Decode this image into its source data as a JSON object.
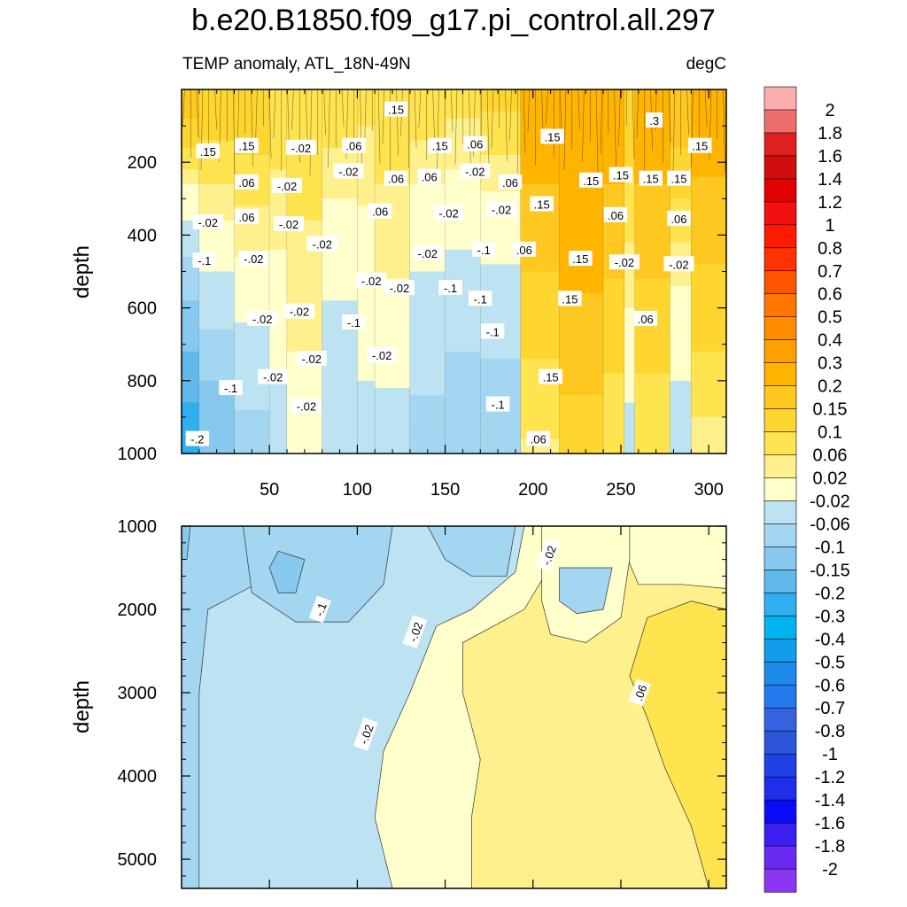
{
  "title": "b.e20.B1850.f09_g17.pi_control.all.297",
  "subtitle_left": "TEMP anomaly, ATL_18N-49N",
  "subtitle_right": "degC",
  "chart_data": [
    {
      "type": "heatmap",
      "panel": "upper",
      "description_role": "filled contour of temperature anomaly vs time and depth",
      "xlabel": "",
      "ylabel": "depth",
      "xlim": [
        0,
        310
      ],
      "ylim": [
        1000,
        0
      ],
      "xticks": [
        50,
        100,
        150,
        200,
        250,
        300
      ],
      "yticks": [
        200,
        400,
        600,
        800,
        1000
      ],
      "columns": [
        {
          "x0": 0,
          "x1": 10,
          "surface": 0.2,
          "deep": -0.25,
          "cross": 300
        },
        {
          "x0": 10,
          "x1": 30,
          "surface": 0.15,
          "deep": -0.15,
          "cross": 420
        },
        {
          "x0": 30,
          "x1": 50,
          "surface": 0.15,
          "deep": -0.08,
          "cross": 520
        },
        {
          "x0": 50,
          "x1": 60,
          "surface": 0.1,
          "deep": -0.04,
          "cross": 560
        },
        {
          "x0": 60,
          "x1": 80,
          "surface": 0.1,
          "deep": 0.0,
          "cross": 900
        },
        {
          "x0": 80,
          "x1": 100,
          "surface": 0.1,
          "deep": -0.06,
          "cross": 380
        },
        {
          "x0": 100,
          "x1": 110,
          "surface": 0.08,
          "deep": -0.03,
          "cross": 420
        },
        {
          "x0": 110,
          "x1": 130,
          "surface": 0.1,
          "deep": -0.04,
          "cross": 650
        },
        {
          "x0": 130,
          "x1": 150,
          "surface": 0.1,
          "deep": -0.08,
          "cross": 330
        },
        {
          "x0": 150,
          "x1": 170,
          "surface": 0.08,
          "deep": -0.1,
          "cross": 300
        },
        {
          "x0": 170,
          "x1": 193,
          "surface": 0.12,
          "deep": -0.1,
          "cross": 340
        },
        {
          "x0": 193,
          "x1": 215,
          "surface": 0.25,
          "deep": 0.05,
          "cross": 1000
        },
        {
          "x0": 215,
          "x1": 240,
          "surface": 0.3,
          "deep": 0.12,
          "cross": 1000
        },
        {
          "x0": 240,
          "x1": 252,
          "surface": 0.25,
          "deep": 0.06,
          "cross": 1000
        },
        {
          "x0": 252,
          "x1": 258,
          "surface": 0.15,
          "deep": -0.04,
          "cross": 700
        },
        {
          "x0": 258,
          "x1": 278,
          "surface": 0.25,
          "deep": 0.06,
          "cross": 1000
        },
        {
          "x0": 278,
          "x1": 290,
          "surface": 0.2,
          "deep": -0.04,
          "cross": 600
        },
        {
          "x0": 290,
          "x1": 310,
          "surface": 0.25,
          "deep": 0.04,
          "cross": 1000
        }
      ],
      "contour_labels": [
        {
          "text": ".15",
          "x": 122,
          "y": 55
        },
        {
          "text": ".15",
          "x": 15,
          "y": 170
        },
        {
          "text": ".15",
          "x": 37,
          "y": 155
        },
        {
          "text": "-.02",
          "x": 68,
          "y": 160
        },
        {
          "text": ".06",
          "x": 98,
          "y": 155
        },
        {
          "text": ".15",
          "x": 147,
          "y": 155
        },
        {
          "text": ".06",
          "x": 167,
          "y": 150
        },
        {
          "text": ".15",
          "x": 211,
          "y": 130
        },
        {
          "text": ".3",
          "x": 269,
          "y": 85
        },
        {
          "text": ".15",
          "x": 295,
          "y": 155
        },
        {
          "text": ".06",
          "x": 37,
          "y": 255
        },
        {
          "text": "-.02",
          "x": 60,
          "y": 265
        },
        {
          "text": "-.02",
          "x": 95,
          "y": 225
        },
        {
          "text": ".06",
          "x": 122,
          "y": 245
        },
        {
          "text": ".06",
          "x": 141,
          "y": 240
        },
        {
          "text": "-.02",
          "x": 167,
          "y": 225
        },
        {
          "text": ".06",
          "x": 187,
          "y": 255
        },
        {
          "text": ".15",
          "x": 233,
          "y": 250
        },
        {
          "text": ".15",
          "x": 250,
          "y": 235
        },
        {
          "text": ".15",
          "x": 267,
          "y": 245
        },
        {
          "text": ".15",
          "x": 283,
          "y": 245
        },
        {
          "text": "-.02",
          "x": 15,
          "y": 365
        },
        {
          "text": ".06",
          "x": 37,
          "y": 350
        },
        {
          "text": "-.02",
          "x": 61,
          "y": 370
        },
        {
          "text": ".06",
          "x": 113,
          "y": 335
        },
        {
          "text": "-.02",
          "x": 152,
          "y": 340
        },
        {
          "text": "-.02",
          "x": 182,
          "y": 330
        },
        {
          "text": ".15",
          "x": 205,
          "y": 315
        },
        {
          "text": ".06",
          "x": 247,
          "y": 345
        },
        {
          "text": ".06",
          "x": 283,
          "y": 355
        },
        {
          "text": "-.1",
          "x": 13,
          "y": 470
        },
        {
          "text": "-.02",
          "x": 41,
          "y": 465
        },
        {
          "text": "-.02",
          "x": 80,
          "y": 425
        },
        {
          "text": "-.02",
          "x": 140,
          "y": 450
        },
        {
          "text": "-.1",
          "x": 172,
          "y": 440
        },
        {
          "text": ".06",
          "x": 195,
          "y": 440
        },
        {
          "text": ".15",
          "x": 227,
          "y": 465
        },
        {
          "text": "-.02",
          "x": 252,
          "y": 475
        },
        {
          "text": "-.02",
          "x": 283,
          "y": 480
        },
        {
          "text": "-.02",
          "x": 108,
          "y": 525
        },
        {
          "text": "-.02",
          "x": 124,
          "y": 545
        },
        {
          "text": "-.1",
          "x": 153,
          "y": 545
        },
        {
          "text": "-.1",
          "x": 170,
          "y": 575
        },
        {
          "text": ".15",
          "x": 221,
          "y": 575
        },
        {
          "text": "-.02",
          "x": 46,
          "y": 630
        },
        {
          "text": "-.02",
          "x": 67,
          "y": 610
        },
        {
          "text": "-.1",
          "x": 98,
          "y": 640
        },
        {
          "text": ".06",
          "x": 264,
          "y": 630
        },
        {
          "text": "-.1",
          "x": 177,
          "y": 665
        },
        {
          "text": "-.02",
          "x": 74,
          "y": 740
        },
        {
          "text": "-.02",
          "x": 114,
          "y": 730
        },
        {
          "text": "-.02",
          "x": 52,
          "y": 790
        },
        {
          "text": ".15",
          "x": 210,
          "y": 790
        },
        {
          "text": "-.1",
          "x": 28,
          "y": 820
        },
        {
          "text": "-.02",
          "x": 71,
          "y": 870
        },
        {
          "text": "-.1",
          "x": 180,
          "y": 865
        },
        {
          "text": "-.2",
          "x": 9,
          "y": 960
        },
        {
          "text": ".06",
          "x": 203,
          "y": 960
        }
      ]
    },
    {
      "type": "heatmap",
      "panel": "lower",
      "description_role": "filled contour of deep temperature anomaly vs time and depth",
      "xlabel": "",
      "ylabel": "depth",
      "xlim": [
        0,
        310
      ],
      "ylim": [
        5350,
        1000
      ],
      "yticks": [
        1000,
        2000,
        3000,
        4000,
        5000
      ],
      "regions": [
        {
          "level": "-0.06 to -0.02",
          "value": -0.04
        },
        {
          "level": "-0.1 to -0.06",
          "value": -0.08
        },
        {
          "level": "-0.15 to -0.1",
          "value": -0.12
        },
        {
          "level": "-0.02 to 0.02",
          "value": 0.0
        },
        {
          "level": "0.02 to 0.06",
          "value": 0.04
        },
        {
          "level": "0.06 to 0.1",
          "value": 0.08
        }
      ],
      "contour_labels": [
        {
          "text": "-.02",
          "x": 209,
          "y": 1350
        },
        {
          "text": "-.1",
          "x": 79,
          "y": 2000
        },
        {
          "text": "-.02",
          "x": 133,
          "y": 2270
        },
        {
          "text": ".06",
          "x": 261,
          "y": 3000
        },
        {
          "text": "-.02",
          "x": 105,
          "y": 3500
        }
      ]
    }
  ],
  "colorbar": {
    "labels": [
      "2",
      "1.8",
      "1.6",
      "1.4",
      "1.2",
      "1",
      "0.8",
      "0.7",
      "0.6",
      "0.5",
      "0.4",
      "0.3",
      "0.2",
      "0.15",
      "0.1",
      "0.06",
      "0.02",
      "-0.02",
      "-0.06",
      "-0.1",
      "-0.15",
      "-0.2",
      "-0.3",
      "-0.4",
      "-0.5",
      "-0.6",
      "-0.7",
      "-0.8",
      "-1",
      "-1.2",
      "-1.4",
      "-1.6",
      "-1.8",
      "-2"
    ],
    "colors": [
      "#fbaeae",
      "#ee6e6e",
      "#e02020",
      "#d00c0c",
      "#e20000",
      "#f21010",
      "#ff1a00",
      "#ff3300",
      "#ff5500",
      "#ff7700",
      "#ff8c00",
      "#ffa000",
      "#ffb400",
      "#ffc820",
      "#ffd630",
      "#ffe44f",
      "#fff08e",
      "#ffffcb",
      "#bde3f3",
      "#a3d6f0",
      "#86c8ee",
      "#60b8eb",
      "#30aff0",
      "#00b4f0",
      "#119de9",
      "#1d89ea",
      "#2378ec",
      "#3563df",
      "#2c55d9",
      "#1f42e6",
      "#1f2eea",
      "#0a0af6",
      "#3a1ff0",
      "#6a2af0",
      "#8a35f0"
    ]
  }
}
